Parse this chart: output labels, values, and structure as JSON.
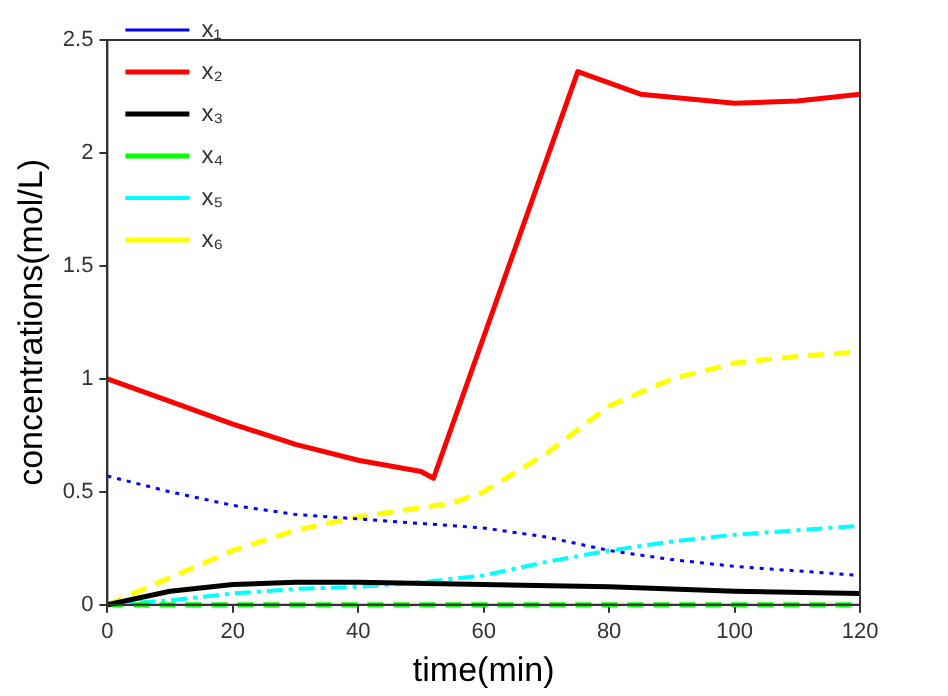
{
  "chart_data": {
    "type": "line",
    "xlabel": "time(min)",
    "ylabel": "concentrations(mol/L)",
    "xlim": [
      0,
      120
    ],
    "xticks": [
      0,
      20,
      40,
      60,
      80,
      100,
      120
    ],
    "ylim": [
      0,
      2.5
    ],
    "yticks": [
      0,
      0.5,
      1,
      1.5,
      2,
      2.5
    ],
    "grid": false,
    "legend": "top left",
    "marker": "none",
    "series": [
      {
        "name": "x₁",
        "color": "#0000ff",
        "line_style": "dotted",
        "x": [
          0,
          10,
          20,
          30,
          40,
          50,
          60,
          70,
          80,
          90,
          100,
          110,
          120
        ],
        "values": [
          0.57,
          0.5,
          0.44,
          0.4,
          0.38,
          0.36,
          0.34,
          0.3,
          0.24,
          0.2,
          0.17,
          0.15,
          0.13
        ]
      },
      {
        "name": "x₂",
        "color": "#ff0000",
        "line_style": "solid",
        "x": [
          0,
          10,
          20,
          30,
          40,
          50,
          52,
          75,
          85,
          100,
          110,
          120
        ],
        "values": [
          1.0,
          0.9,
          0.8,
          0.71,
          0.64,
          0.59,
          0.56,
          2.36,
          2.26,
          2.22,
          2.23,
          2.26
        ]
      },
      {
        "name": "x₃",
        "color": "#000000",
        "line_style": "solid",
        "x": [
          0,
          10,
          20,
          30,
          40,
          60,
          80,
          100,
          120
        ],
        "values": [
          0,
          0.06,
          0.09,
          0.1,
          0.1,
          0.09,
          0.08,
          0.06,
          0.05
        ]
      },
      {
        "name": "x₄",
        "color": "#00ff00",
        "line_style": "dashed",
        "x": [
          0,
          120
        ],
        "values": [
          0,
          0
        ]
      },
      {
        "name": "x₅",
        "color": "#00ffff",
        "line_style": "dashdot",
        "x": [
          0,
          10,
          20,
          30,
          40,
          50,
          60,
          70,
          80,
          90,
          100,
          110,
          120
        ],
        "values": [
          0,
          0.02,
          0.05,
          0.07,
          0.08,
          0.1,
          0.13,
          0.19,
          0.24,
          0.28,
          0.31,
          0.33,
          0.35
        ]
      },
      {
        "name": "x₆",
        "color": "#ffff00",
        "line_style": "dashed",
        "x": [
          0,
          10,
          20,
          30,
          40,
          50,
          55,
          60,
          70,
          80,
          90,
          100,
          110,
          120
        ],
        "values": [
          0,
          0.12,
          0.24,
          0.33,
          0.39,
          0.43,
          0.45,
          0.5,
          0.67,
          0.88,
          1.0,
          1.07,
          1.1,
          1.12
        ]
      }
    ]
  }
}
